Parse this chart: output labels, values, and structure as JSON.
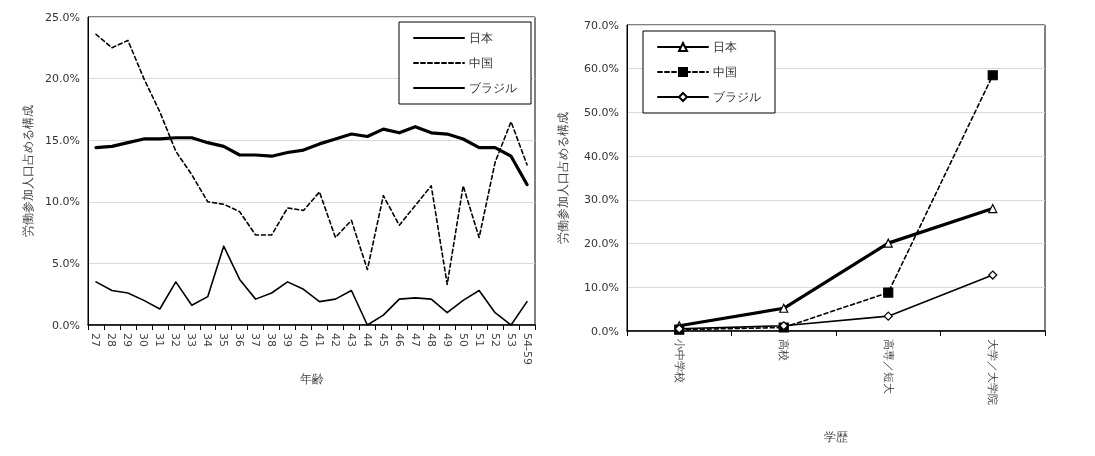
{
  "chart_data": [
    {
      "type": "line",
      "xlabel": "年齢",
      "ylabel": "労働参加人口占める構成",
      "categories": [
        "27",
        "28",
        "29",
        "30",
        "31",
        "32",
        "33",
        "34",
        "35",
        "36",
        "37",
        "38",
        "39",
        "40",
        "41",
        "42",
        "43",
        "44",
        "45",
        "46",
        "47",
        "48",
        "49",
        "50",
        "51",
        "52",
        "53",
        "54-59"
      ],
      "series": [
        {
          "name": "日本",
          "color": "#000000",
          "line_style": "solid",
          "values": [
            14.4,
            14.5,
            14.8,
            15.1,
            15.1,
            15.2,
            15.2,
            14.8,
            14.5,
            13.8,
            13.8,
            13.7,
            14.0,
            14.2,
            14.7,
            15.1,
            15.5,
            15.3,
            15.9,
            15.6,
            16.1,
            15.6,
            15.5,
            15.1,
            14.4,
            14.4,
            13.7,
            11.4
          ]
        },
        {
          "name": "中国",
          "color": "#000000",
          "line_style": "dashed",
          "values": [
            23.6,
            22.5,
            23.1,
            20.0,
            17.3,
            14.1,
            12.2,
            10.0,
            9.8,
            9.2,
            7.3,
            7.3,
            9.5,
            9.3,
            10.8,
            7.1,
            8.5,
            4.5,
            10.5,
            8.1,
            9.7,
            11.3,
            3.3,
            11.3,
            7.1,
            13.2,
            16.5,
            13.0
          ]
        },
        {
          "name": "ブラジル",
          "color": "#000000",
          "line_style": "solid",
          "values": [
            3.5,
            2.8,
            2.6,
            2.0,
            1.3,
            3.5,
            1.6,
            2.3,
            6.4,
            3.7,
            2.1,
            2.6,
            3.5,
            2.9,
            1.9,
            2.1,
            2.8,
            0,
            0.8,
            2.1,
            2.2,
            2.1,
            1.0,
            2.0,
            2.8,
            1.0,
            0,
            1.9
          ]
        }
      ],
      "ylim": [
        0,
        25
      ],
      "yticks": [
        {
          "value": 0,
          "label": "0.0%"
        },
        {
          "value": 5,
          "label": "5.0%"
        },
        {
          "value": 10,
          "label": "10.0%"
        },
        {
          "value": 15,
          "label": "15.0%"
        },
        {
          "value": 20,
          "label": "20.0%"
        },
        {
          "value": 25,
          "label": "25.0%"
        }
      ],
      "grid": "y",
      "legend": "top right",
      "marker": "none"
    },
    {
      "type": "line",
      "xlabel": "学歴",
      "ylabel": "労働参加人口占める構成",
      "categories": [
        "小中学校",
        "高校",
        "高専／短大",
        "大学／大学院"
      ],
      "series": [
        {
          "name": "日本",
          "color": "#000000",
          "line_style": "solid",
          "marker": "triangle",
          "values": [
            1.2,
            5.2,
            20.1,
            28.0
          ]
        },
        {
          "name": "中国",
          "color": "#000000",
          "line_style": "dashed",
          "marker": "square",
          "values": [
            0.3,
            0.8,
            8.8,
            58.5
          ]
        },
        {
          "name": "ブラジル",
          "color": "#000000",
          "line_style": "solid",
          "marker": "diamond",
          "values": [
            0.5,
            1.2,
            3.4,
            12.8
          ]
        }
      ],
      "ylim": [
        0,
        70
      ],
      "yticks": [
        {
          "value": 0,
          "label": "0.0%"
        },
        {
          "value": 10,
          "label": "10.0%"
        },
        {
          "value": 20,
          "label": "20.0%"
        },
        {
          "value": 30,
          "label": "30.0%"
        },
        {
          "value": 40,
          "label": "40.0%"
        },
        {
          "value": 50,
          "label": "50.0%"
        },
        {
          "value": 60,
          "label": "60.0%"
        },
        {
          "value": 70,
          "label": "70.0%"
        }
      ],
      "grid": "y",
      "legend": "top left"
    }
  ]
}
